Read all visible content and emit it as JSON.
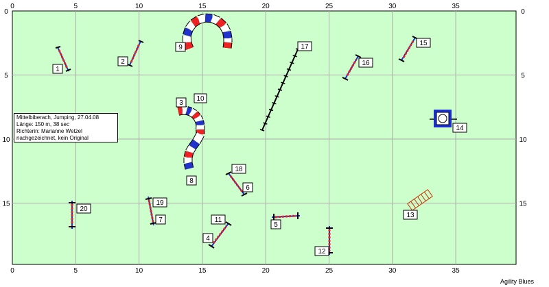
{
  "course": {
    "x_ticks": [
      "0",
      "5",
      "10",
      "15",
      "20",
      "25",
      "30",
      "35"
    ],
    "y_ticks": [
      "0",
      "5",
      "10",
      "15"
    ],
    "colors": {
      "field": "#ccffcc",
      "grid": "#aaaaaa",
      "pole_red": "#ee2222",
      "tunnel_red": "#ee2222",
      "tunnel_blue": "#2233cc",
      "wing_blue": "#1a2fcc"
    },
    "obstacles": [
      {
        "id": "obstacle-1",
        "type": "jump",
        "label": "1"
      },
      {
        "id": "obstacle-2",
        "type": "jump",
        "label": "2"
      },
      {
        "id": "obstacle-3-10",
        "type": "tunnel",
        "label": "3",
        "label2": "10"
      },
      {
        "id": "obstacle-4-11",
        "type": "jump",
        "label": "4",
        "label2": "11"
      },
      {
        "id": "obstacle-5",
        "type": "jump",
        "label": "5"
      },
      {
        "id": "obstacle-6-18",
        "type": "jump",
        "label": "6",
        "label2": "18"
      },
      {
        "id": "obstacle-7-19",
        "type": "jump",
        "label": "7",
        "label2": "19"
      },
      {
        "id": "obstacle-8",
        "type": "tunnel-exit",
        "label": "8"
      },
      {
        "id": "obstacle-9",
        "type": "tunnel",
        "label": "9"
      },
      {
        "id": "obstacle-12",
        "type": "jump",
        "label": "12"
      },
      {
        "id": "obstacle-13",
        "type": "tire-jump",
        "label": "13"
      },
      {
        "id": "obstacle-14",
        "type": "table",
        "label": "14"
      },
      {
        "id": "obstacle-15",
        "type": "jump",
        "label": "15"
      },
      {
        "id": "obstacle-16",
        "type": "jump",
        "label": "16"
      },
      {
        "id": "obstacle-17",
        "type": "weave-poles",
        "label": "17"
      },
      {
        "id": "obstacle-20",
        "type": "jump",
        "label": "20"
      }
    ]
  },
  "info": {
    "line1": "Mittelbiberach, Jumping, 27.04.08",
    "line2": "Länge: 150 m,  38 sec",
    "line3": "Richterin: Marianne Wetzel",
    "line4": "nachgezeichnet, kein Original"
  },
  "credit": "Agility Blues"
}
